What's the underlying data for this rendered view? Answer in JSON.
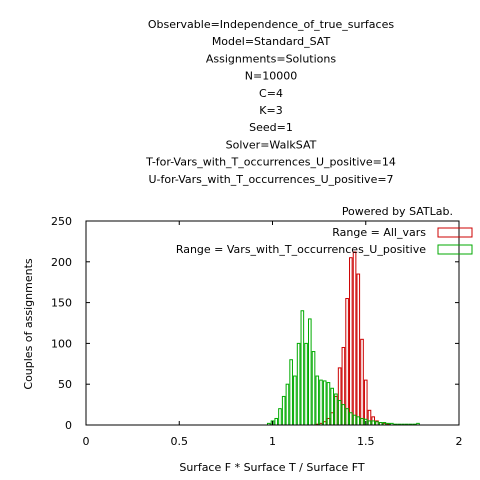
{
  "chart_data": {
    "type": "bar",
    "title_lines": [
      "Observable=Independence_of_true_surfaces",
      "Model=Standard_SAT",
      "Assignments=Solutions",
      "N=10000",
      "C=4",
      "K=3",
      "Seed=1",
      "Solver=WalkSAT",
      "T-for-Vars_with_T_occurrences_U_positive=14",
      "U-for-Vars_with_T_occurrences_U_positive=7"
    ],
    "credit": "Powered by SATLab.",
    "xlabel": "Surface F * Surface T / Surface FT",
    "ylabel": "Couples of assignments",
    "xlim": [
      0,
      2
    ],
    "ylim": [
      0,
      250
    ],
    "x_ticks": [
      "0",
      "0.5",
      "1",
      "1.5",
      "2"
    ],
    "x_tick_values": [
      0,
      0.5,
      1,
      1.5,
      2
    ],
    "y_ticks": [
      "0",
      "50",
      "100",
      "150",
      "200",
      "250"
    ],
    "y_tick_values": [
      0,
      50,
      100,
      150,
      200,
      250
    ],
    "legend_position": "top-right",
    "bin_width": 0.02,
    "series": [
      {
        "name": "Range = All_vars",
        "color": "#cc0000",
        "x": [
          1.24,
          1.26,
          1.28,
          1.3,
          1.32,
          1.34,
          1.36,
          1.38,
          1.4,
          1.42,
          1.44,
          1.46,
          1.48,
          1.5,
          1.52,
          1.54,
          1.56,
          1.58,
          1.6,
          1.62
        ],
        "values": [
          1,
          2,
          4,
          8,
          15,
          35,
          70,
          95,
          155,
          205,
          212,
          185,
          105,
          55,
          18,
          10,
          5,
          3,
          2,
          1
        ]
      },
      {
        "name": "Range = Vars_with_T_occurrences_U_positive",
        "color": "#00aa00",
        "x": [
          0.98,
          1.0,
          1.02,
          1.04,
          1.06,
          1.08,
          1.1,
          1.12,
          1.14,
          1.16,
          1.18,
          1.2,
          1.22,
          1.24,
          1.26,
          1.28,
          1.3,
          1.32,
          1.34,
          1.36,
          1.38,
          1.4,
          1.42,
          1.44,
          1.46,
          1.48,
          1.5,
          1.52,
          1.54,
          1.56,
          1.58,
          1.6,
          1.62,
          1.64,
          1.66,
          1.68,
          1.7,
          1.72,
          1.74,
          1.76,
          1.78
        ],
        "values": [
          2,
          5,
          8,
          20,
          35,
          50,
          80,
          60,
          100,
          140,
          100,
          130,
          90,
          60,
          55,
          54,
          52,
          45,
          38,
          30,
          25,
          20,
          15,
          12,
          10,
          8,
          7,
          5,
          5,
          4,
          3,
          3,
          2,
          2,
          1,
          1,
          1,
          1,
          1,
          1,
          2
        ]
      }
    ]
  }
}
